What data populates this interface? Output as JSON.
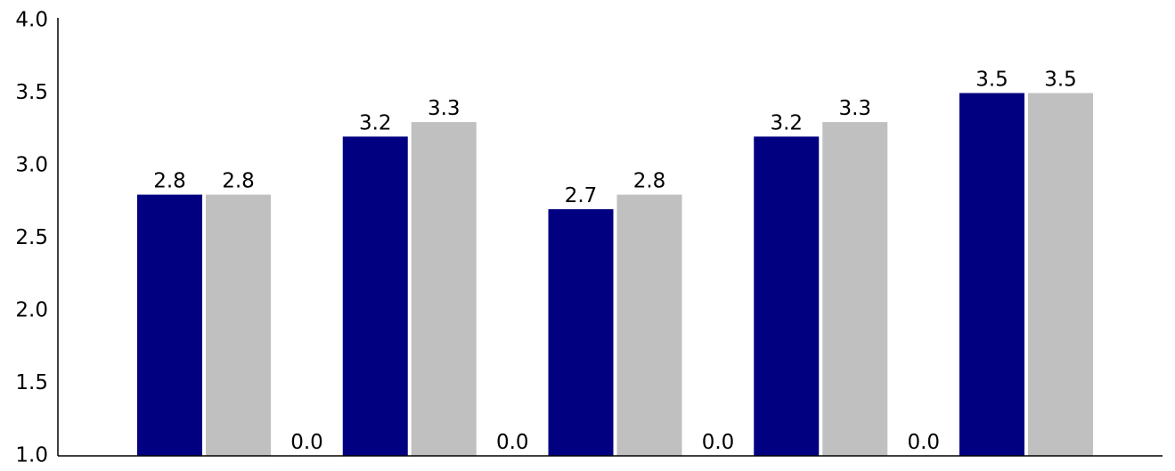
{
  "chart_data": {
    "type": "bar",
    "title": "",
    "xlabel": "",
    "ylabel": "",
    "ylim": [
      1.0,
      4.0
    ],
    "yticks": [
      "1.0",
      "1.5",
      "2.0",
      "2.5",
      "3.0",
      "3.5",
      "4.0"
    ],
    "grid": false,
    "legend": "none",
    "groups": [
      {
        "series_a": 2.8,
        "series_b": 2.8,
        "series_c": 0.0
      },
      {
        "series_a": 3.2,
        "series_b": 3.3,
        "series_c": 0.0
      },
      {
        "series_a": 2.7,
        "series_b": 2.8,
        "series_c": 0.0
      },
      {
        "series_a": 3.2,
        "series_b": 3.3,
        "series_c": 0.0
      },
      {
        "series_a": 3.5,
        "series_b": 3.5
      }
    ],
    "series": [
      {
        "key": "series_a",
        "values": [
          2.8,
          3.2,
          2.7,
          3.2,
          3.5
        ],
        "labels": [
          "2.8",
          "3.2",
          "2.7",
          "3.2",
          "3.5"
        ],
        "color": "#000080"
      },
      {
        "key": "series_b",
        "values": [
          2.8,
          3.3,
          2.8,
          3.3,
          3.5
        ],
        "labels": [
          "2.8",
          "3.3",
          "2.8",
          "3.3",
          "3.5"
        ],
        "color": "#c0c0c0"
      },
      {
        "key": "series_c",
        "values": [
          0.0,
          0.0,
          0.0,
          0.0
        ],
        "labels": [
          "0.0",
          "0.0",
          "0.0",
          "0.0"
        ],
        "color": "#ffffff"
      }
    ],
    "colors": {
      "axis": "#000000",
      "text": "#000000",
      "background": "#ffffff"
    }
  }
}
